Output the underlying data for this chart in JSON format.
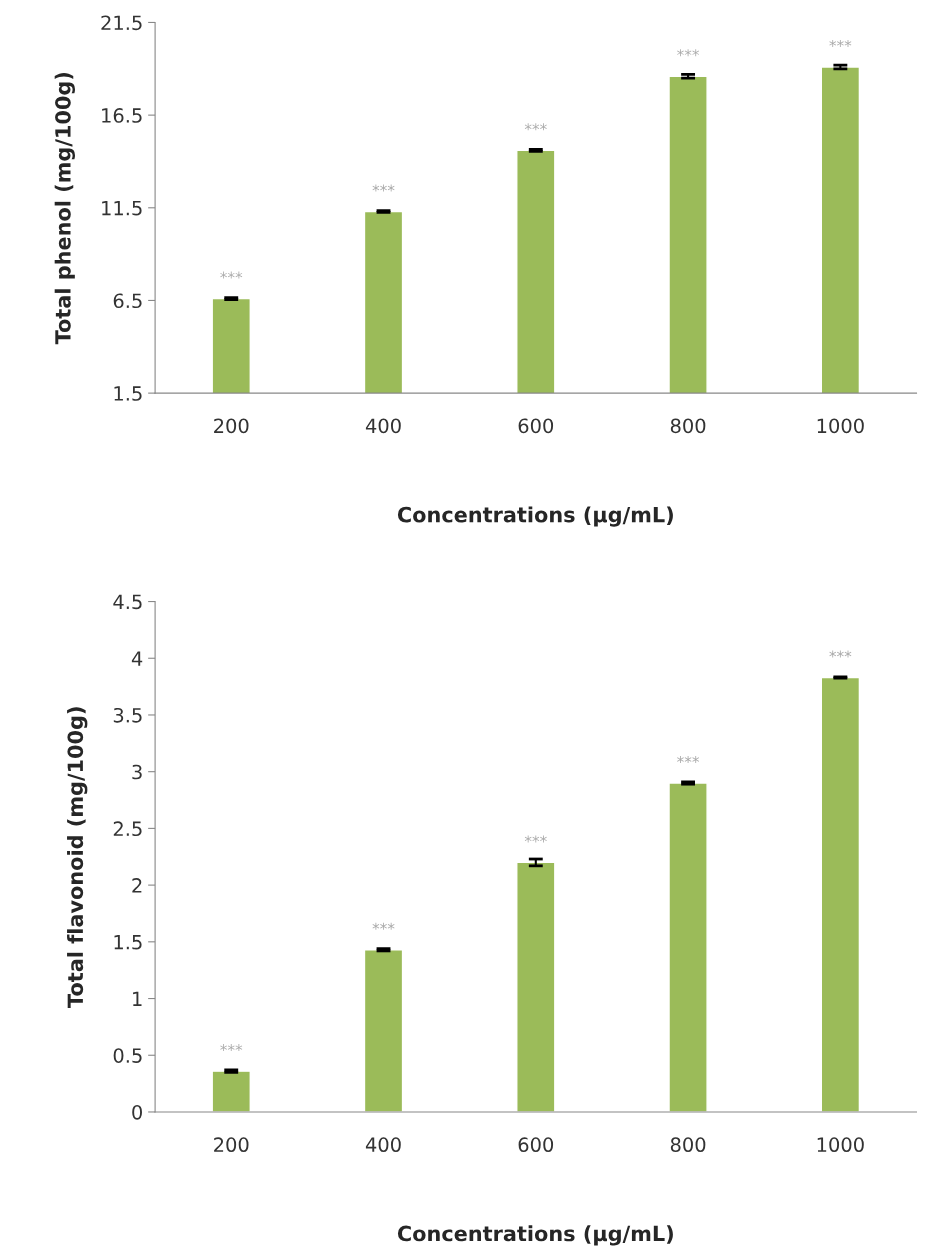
{
  "chart_data": [
    {
      "type": "bar",
      "xlabel": "Concentrations (μg/mL)",
      "ylabel": "Total phenol (mg/100g)",
      "categories": [
        "200",
        "400",
        "600",
        "800",
        "1000"
      ],
      "values": [
        6.6,
        11.3,
        14.6,
        18.6,
        19.1
      ],
      "errors": [
        0.05,
        0.05,
        0.05,
        0.1,
        0.1
      ],
      "color": "#9bbb59",
      "ylim": [
        1.5,
        21.5
      ],
      "yticks": [
        1.5,
        6.5,
        11.5,
        16.5,
        21.5
      ],
      "grid": false,
      "annotations": [
        {
          "text": "***",
          "x": "200",
          "y": 6.6
        },
        {
          "text": "***",
          "x": "400",
          "y": 11.3
        },
        {
          "text": "***",
          "x": "600",
          "y": 14.6
        },
        {
          "text": "***",
          "x": "800",
          "y": 18.6
        },
        {
          "text": "***",
          "x": "1000",
          "y": 19.1
        }
      ]
    },
    {
      "type": "bar",
      "xlabel": "Concentrations (μg/mL)",
      "ylabel": "Total flavonoid (mg/100g)",
      "categories": [
        "200",
        "400",
        "600",
        "800",
        "1000"
      ],
      "values": [
        0.36,
        1.43,
        2.2,
        2.9,
        3.83
      ],
      "errors": [
        0.01,
        0.01,
        0.03,
        0.01,
        0.005
      ],
      "color": "#9bbb59",
      "ylim": [
        0,
        4.5
      ],
      "yticks": [
        0,
        0.5,
        1,
        1.5,
        2,
        2.5,
        3,
        3.5,
        4,
        4.5
      ],
      "grid": false,
      "annotations": [
        {
          "text": "***",
          "x": "200",
          "y": 0.36
        },
        {
          "text": "***",
          "x": "400",
          "y": 1.43
        },
        {
          "text": "***",
          "x": "600",
          "y": 2.2
        },
        {
          "text": "***",
          "x": "800",
          "y": 2.9
        },
        {
          "text": "***",
          "x": "1000",
          "y": 3.83
        }
      ]
    }
  ]
}
